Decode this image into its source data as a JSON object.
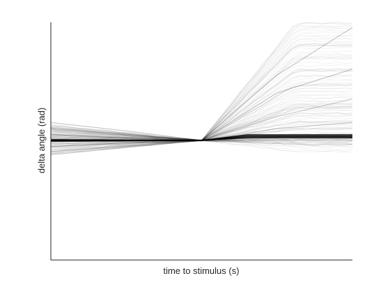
{
  "chart_data": {
    "type": "line",
    "title": "",
    "xlabel": "time to stimulus (s)",
    "ylabel": "delta angle (rad)",
    "xticks": [],
    "yticks": [],
    "grid": false,
    "legend": "none",
    "line_color": "#000000",
    "description_of_traces": "many overlaid semi-transparent traces converging to zero at stimulus",
    "series": [
      {
        "x": [
          0,
          0.25,
          0.5,
          0.75,
          1.0
        ],
        "y": [
          0.0,
          0.0,
          0.0,
          0.03,
          0.03
        ]
      },
      {
        "x": [
          0,
          0.25,
          0.5,
          0.75,
          1.0
        ],
        "y": [
          0.15,
          0.08,
          0.0,
          0.4,
          0.6
        ]
      },
      {
        "x": [
          0,
          0.25,
          0.5,
          0.75,
          1.0
        ],
        "y": [
          -0.12,
          -0.06,
          0.0,
          0.2,
          0.35
        ]
      },
      {
        "x": [
          0,
          0.25,
          0.5,
          0.75,
          1.0
        ],
        "y": [
          0.05,
          0.02,
          0.0,
          0.55,
          0.95
        ]
      },
      {
        "x": [
          0,
          0.25,
          0.5,
          0.75,
          1.0
        ],
        "y": [
          -0.05,
          -0.02,
          0.0,
          0.1,
          0.15
        ]
      }
    ]
  }
}
